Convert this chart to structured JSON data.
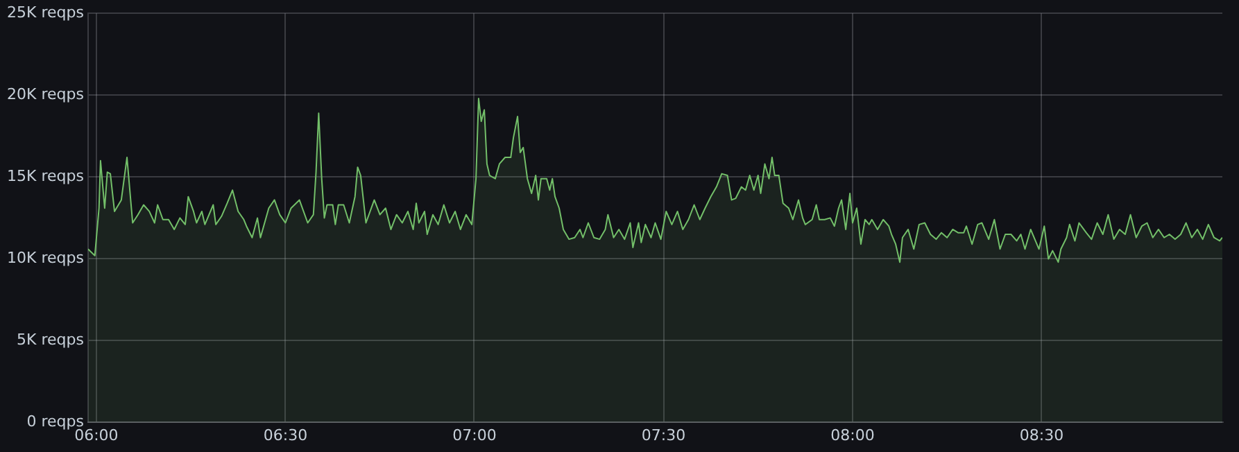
{
  "chart_data": {
    "type": "area",
    "color": "#73bf69",
    "grid": true,
    "xlim": [
      5.978,
      8.978
    ],
    "xticks": [
      {
        "value": 6,
        "label": "06:00"
      },
      {
        "value": 6.5,
        "label": "06:30"
      },
      {
        "value": 7,
        "label": "07:00"
      },
      {
        "value": 7.5,
        "label": "07:30"
      },
      {
        "value": 8,
        "label": "08:00"
      },
      {
        "value": 8.5,
        "label": "08:30"
      }
    ],
    "ylim": [
      0,
      25000
    ],
    "yticks": [
      {
        "value": 0,
        "label": "0 reqps"
      },
      {
        "value": 5000,
        "label": "5K reqps"
      },
      {
        "value": 10000,
        "label": "10K reqps"
      },
      {
        "value": 15000,
        "label": "15K reqps"
      },
      {
        "value": 20000,
        "label": "20K reqps"
      },
      {
        "value": 25000,
        "label": "25K reqps"
      }
    ],
    "x": [
      5.978,
      5.996,
      6.007,
      6.011,
      6.022,
      6.029,
      6.037,
      6.048,
      6.066,
      6.081,
      6.096,
      6.11,
      6.125,
      6.14,
      6.154,
      6.162,
      6.176,
      6.191,
      6.206,
      6.221,
      6.235,
      6.243,
      6.257,
      6.265,
      6.279,
      6.287,
      6.309,
      6.316,
      6.331,
      6.346,
      6.36,
      6.375,
      6.39,
      6.397,
      6.412,
      6.426,
      6.434,
      6.456,
      6.471,
      6.485,
      6.5,
      6.515,
      6.537,
      6.559,
      6.574,
      6.581,
      6.588,
      6.596,
      6.603,
      6.61,
      6.625,
      6.632,
      6.64,
      6.654,
      6.669,
      6.684,
      6.691,
      6.699,
      6.713,
      6.735,
      6.75,
      6.765,
      6.779,
      6.794,
      6.809,
      6.824,
      6.838,
      6.846,
      6.853,
      6.868,
      6.875,
      6.89,
      6.904,
      6.919,
      6.934,
      6.949,
      6.963,
      6.978,
      6.993,
      7.004,
      7.011,
      7.018,
      7.026,
      7.033,
      7.04,
      7.055,
      7.066,
      7.081,
      7.096,
      7.103,
      7.114,
      7.121,
      7.129,
      7.14,
      7.151,
      7.162,
      7.169,
      7.176,
      7.191,
      7.199,
      7.206,
      7.213,
      7.224,
      7.235,
      7.25,
      7.265,
      7.279,
      7.287,
      7.301,
      7.316,
      7.331,
      7.346,
      7.353,
      7.368,
      7.382,
      7.397,
      7.412,
      7.419,
      7.434,
      7.441,
      7.452,
      7.467,
      7.478,
      7.493,
      7.507,
      7.522,
      7.537,
      7.551,
      7.566,
      7.581,
      7.596,
      7.61,
      7.625,
      7.64,
      7.654,
      7.669,
      7.68,
      7.691,
      7.706,
      7.717,
      7.728,
      7.739,
      7.75,
      7.757,
      7.768,
      7.779,
      7.787,
      7.794,
      7.805,
      7.816,
      7.831,
      7.842,
      7.857,
      7.868,
      7.875,
      7.893,
      7.904,
      7.912,
      7.926,
      7.941,
      7.952,
      7.963,
      7.971,
      7.982,
      7.993,
      8.0,
      8.011,
      8.022,
      8.033,
      8.044,
      8.051,
      8.066,
      8.081,
      8.096,
      8.103,
      8.114,
      8.125,
      8.132,
      8.147,
      8.162,
      8.176,
      8.191,
      8.206,
      8.221,
      8.235,
      8.25,
      8.265,
      8.279,
      8.294,
      8.301,
      8.316,
      8.331,
      8.342,
      8.36,
      8.375,
      8.39,
      8.404,
      8.419,
      8.434,
      8.445,
      8.456,
      8.471,
      8.482,
      8.493,
      8.507,
      8.518,
      8.529,
      8.544,
      8.551,
      8.566,
      8.574,
      8.588,
      8.599,
      8.618,
      8.632,
      8.647,
      8.662,
      8.676,
      8.691,
      8.706,
      8.721,
      8.735,
      8.75,
      8.765,
      8.779,
      8.794,
      8.809,
      8.824,
      8.838,
      8.853,
      8.868,
      8.882,
      8.897,
      8.912,
      8.926,
      8.941,
      8.956,
      8.971,
      8.978
    ],
    "values": [
      10600,
      10200,
      13100,
      16000,
      13100,
      15300,
      15200,
      12900,
      13600,
      16200,
      12200,
      12700,
      13300,
      12900,
      12200,
      13300,
      12400,
      12400,
      11800,
      12500,
      12100,
      13800,
      12900,
      12200,
      12900,
      12100,
      13300,
      12100,
      12600,
      13400,
      14200,
      12900,
      12400,
      12000,
      11300,
      12500,
      11300,
      13100,
      13600,
      12700,
      12200,
      13100,
      13600,
      12200,
      12700,
      15300,
      18900,
      14900,
      12500,
      13300,
      13300,
      12100,
      13300,
      13300,
      12200,
      13800,
      15600,
      15100,
      12200,
      13600,
      12700,
      13100,
      11800,
      12700,
      12200,
      12900,
      11800,
      13400,
      12200,
      12900,
      11500,
      12700,
      12100,
      13300,
      12200,
      12900,
      11800,
      12700,
      12100,
      14900,
      19800,
      18400,
      19100,
      15800,
      15100,
      14900,
      15800,
      16200,
      16200,
      17400,
      18700,
      16500,
      16800,
      14900,
      14000,
      15100,
      13600,
      14900,
      14900,
      14200,
      14900,
      13800,
      13100,
      11800,
      11200,
      11300,
      11800,
      11300,
      12200,
      11300,
      11200,
      11800,
      12700,
      11300,
      11800,
      11200,
      12200,
      10700,
      12200,
      11000,
      12100,
      11300,
      12200,
      11200,
      12900,
      12100,
      12900,
      11800,
      12400,
      13300,
      12400,
      13100,
      13800,
      14400,
      15200,
      15100,
      13600,
      13700,
      14400,
      14200,
      15100,
      14200,
      15100,
      14000,
      15800,
      14900,
      16200,
      15100,
      15100,
      13400,
      13100,
      12400,
      13600,
      12500,
      12100,
      12400,
      13300,
      12400,
      12400,
      12500,
      12000,
      13100,
      13600,
      11800,
      14000,
      12200,
      13100,
      10900,
      12400,
      12100,
      12400,
      11800,
      12400,
      12000,
      11500,
      10900,
      9800,
      11300,
      11800,
      10600,
      12100,
      12200,
      11500,
      11200,
      11600,
      11300,
      11800,
      11600,
      11600,
      12000,
      10900,
      12100,
      12200,
      11200,
      12400,
      10600,
      11500,
      11500,
      11100,
      11500,
      10600,
      11800,
      11200,
      10600,
      12000,
      10000,
      10500,
      9800,
      10600,
      11300,
      12100,
      11100,
      12200,
      11600,
      11200,
      12200,
      11500,
      12700,
      11200,
      11800,
      11500,
      12700,
      11300,
      12000,
      12200,
      11300,
      11800,
      11300,
      11500,
      11200,
      11500,
      12200,
      11300,
      11800,
      11200,
      12100,
      11300,
      11100,
      11300
    ]
  }
}
